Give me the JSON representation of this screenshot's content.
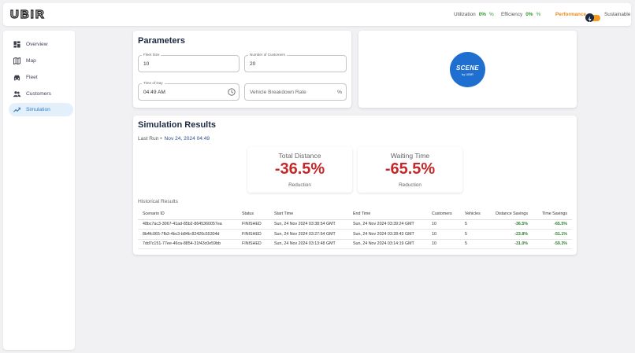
{
  "topbar": {
    "logo_text": "UBIR",
    "utilization": {
      "label": "Utilization",
      "value": "0%",
      "unit": "%"
    },
    "efficiency": {
      "label": "Efficiency",
      "value": "0%",
      "unit": "%"
    },
    "performance_label": "Performance",
    "sustainable_label": "Sustainable",
    "colors": {
      "accent_orange": "#e88a1a",
      "positive_green": "#2e9b2e"
    }
  },
  "sidebar": {
    "items": [
      {
        "label": "Overview",
        "icon": "dashboard-icon"
      },
      {
        "label": "Map",
        "icon": "map-icon"
      },
      {
        "label": "Fleet",
        "icon": "car-icon"
      },
      {
        "label": "Customers",
        "icon": "people-icon"
      },
      {
        "label": "Simulation",
        "icon": "trending-icon",
        "active": true
      }
    ]
  },
  "parameters": {
    "title": "Parameters",
    "fleet_size": {
      "label": "Fleet Size",
      "value": "10"
    },
    "num_customers": {
      "label": "Number of Customers",
      "value": "20"
    },
    "time_of_day": {
      "label": "Time of Day",
      "value": "04:49 AM"
    },
    "breakdown_rate": {
      "placeholder": "Vehicle Breakdown Rate",
      "unit": "%"
    }
  },
  "brand_logo": {
    "line1": "SCENE",
    "line2": "by UBIR"
  },
  "results": {
    "title": "Simulation Results",
    "last_run_label": "Last Run •",
    "last_run_date": "Nov 24, 2024 04:49",
    "metrics": [
      {
        "title": "Total Distance",
        "value": "-36.5%",
        "sub": "Reduction"
      },
      {
        "title": "Waiting Time",
        "value": "-65.5%",
        "sub": "Reduction"
      }
    ],
    "historical_label": "Historical Results",
    "columns": [
      "Scenario ID",
      "Status",
      "Start Time",
      "End Time",
      "Customers",
      "Vehicles",
      "Distance Savings",
      "Time Savings"
    ],
    "rows": [
      [
        "48bc7ac3-3067-41ad-85b2-8645360057ea",
        "FINISHED",
        "Sun, 24 Nov 2024 03:38:54 GMT",
        "Sun, 24 Nov 2024 03:39:24 GMT",
        "10",
        "5",
        "-36.5%",
        "-65.5%"
      ],
      [
        "8b4fc065-7fb3-4bc3-b84b-82420c55304d",
        "FINISHED",
        "Sun, 24 Nov 2024 03:27:54 GMT",
        "Sun, 24 Nov 2024 03:28:43 GMT",
        "10",
        "5",
        "-23.8%",
        "-51.1%"
      ],
      [
        "7dd7c151-77ee-46ca-8854-31f43c0e59bb",
        "FINISHED",
        "Sun, 24 Nov 2024 03:13:48 GMT",
        "Sun, 24 Nov 2024 03:14:19 GMT",
        "10",
        "5",
        "-31.0%",
        "-59.3%"
      ]
    ]
  }
}
